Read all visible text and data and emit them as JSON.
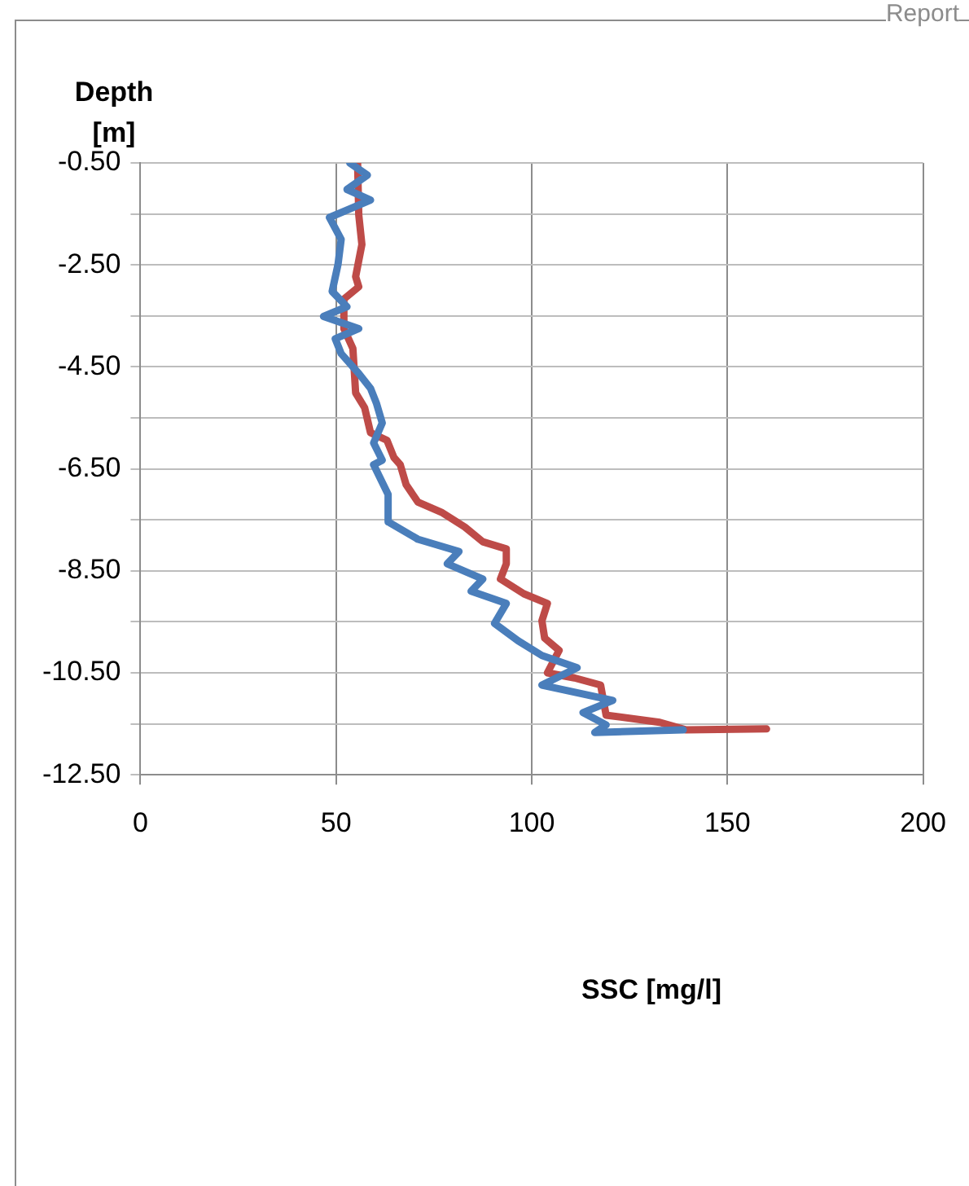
{
  "chart_data": {
    "type": "line",
    "xlabel": "SSC [mg/l]",
    "ylabel": "Depth [m]",
    "annotations": [
      "Report"
    ],
    "xlim": [
      0,
      200
    ],
    "xticks": [
      0,
      50,
      100,
      150,
      200
    ],
    "ylim": [
      -12.5,
      -0.5
    ],
    "yticks": [
      {
        "value": -0.5,
        "label": "-0.50"
      },
      {
        "value": -1.5,
        "label": null
      },
      {
        "value": -2.5,
        "label": "-2.50"
      },
      {
        "value": -3.5,
        "label": null
      },
      {
        "value": -4.5,
        "label": "-4.50"
      },
      {
        "value": -5.5,
        "label": null
      },
      {
        "value": -6.5,
        "label": "-6.50"
      },
      {
        "value": -7.5,
        "label": null
      },
      {
        "value": -8.5,
        "label": "-8.50"
      },
      {
        "value": -9.5,
        "label": null
      },
      {
        "value": -10.5,
        "label": "-10.50"
      },
      {
        "value": -11.5,
        "label": null
      },
      {
        "value": -12.5,
        "label": "-12.50"
      }
    ],
    "grid": true,
    "legend": false,
    "marker": "none",
    "line_style": "solid",
    "series": [
      {
        "color": "#4a7ebb",
        "x": [
          53.5,
          58,
          52.8,
          58.8,
          48.3,
          51.3,
          50.5,
          49,
          52.8,
          46.8,
          55.8,
          49.8,
          51.3,
          55.8,
          58.8,
          60.3,
          61.8,
          59.6,
          61.8,
          59.6,
          63.3,
          63.3,
          70.9,
          81.4,
          78.4,
          87.5,
          84.5,
          93.5,
          90.5,
          96.5,
          102.6,
          111.6,
          102.6,
          120.7,
          113.1,
          119,
          116.1,
          138.7
        ],
        "values": [
          -0.5,
          -0.74,
          -1.02,
          -1.23,
          -1.57,
          -2.0,
          -2.49,
          -3.02,
          -3.32,
          -3.51,
          -3.75,
          -3.95,
          -4.24,
          -4.63,
          -4.92,
          -5.21,
          -5.6,
          -5.99,
          -6.33,
          -6.42,
          -7.0,
          -7.54,
          -7.88,
          -8.12,
          -8.36,
          -8.66,
          -8.9,
          -9.14,
          -9.53,
          -9.87,
          -10.16,
          -10.4,
          -10.74,
          -11.04,
          -11.28,
          -11.52,
          -11.67,
          -11.62
        ]
      },
      {
        "color": "#be4b48",
        "x": [
          55.5,
          55.8,
          56.6,
          55,
          55.8,
          52,
          52,
          54.3,
          55,
          57.3,
          58.8,
          63,
          64.8,
          66.4,
          67.9,
          70.9,
          76.9,
          82.9,
          87.5,
          93.5,
          93.5,
          92,
          98,
          104,
          102.6,
          103.3,
          107,
          104,
          110.9,
          117.6,
          118.4,
          119,
          132.7,
          139.5,
          160
        ],
        "values": [
          -0.5,
          -1.52,
          -2.1,
          -2.73,
          -2.93,
          -3.17,
          -3.75,
          -4.14,
          -5.01,
          -5.3,
          -5.79,
          -5.94,
          -6.28,
          -6.42,
          -6.81,
          -7.15,
          -7.35,
          -7.64,
          -7.93,
          -8.07,
          -8.36,
          -8.66,
          -8.95,
          -9.14,
          -9.48,
          -9.82,
          -10.06,
          -10.5,
          -10.6,
          -10.74,
          -11.08,
          -11.33,
          -11.47,
          -11.62,
          -11.6
        ]
      }
    ]
  }
}
